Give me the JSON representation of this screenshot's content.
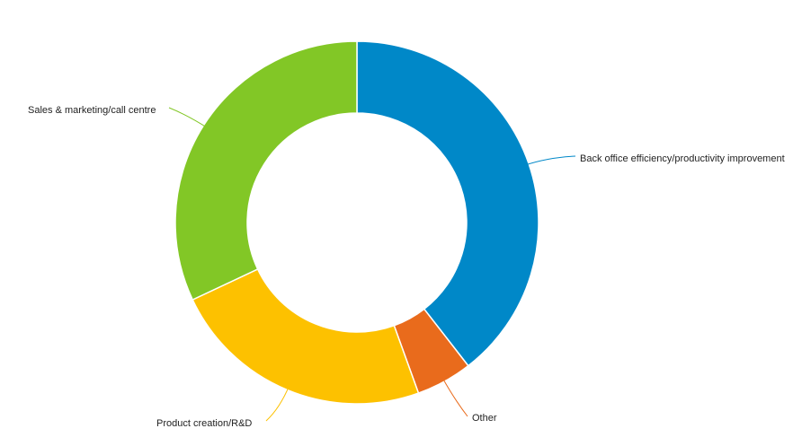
{
  "chart_data": {
    "type": "pie",
    "donut": true,
    "categories": [
      "Back office efficiency/productivity improvement",
      "Other",
      "Product creation/R&D",
      "Sales & marketing/call centre"
    ],
    "values": [
      39.5,
      5.0,
      23.5,
      32.0
    ],
    "colors": [
      "#0088c8",
      "#e96b1c",
      "#fdc100",
      "#82c726"
    ],
    "start_angle_deg": 0,
    "direction": "clockwise",
    "legend": "none",
    "labels": "outside-with-leader-lines"
  }
}
